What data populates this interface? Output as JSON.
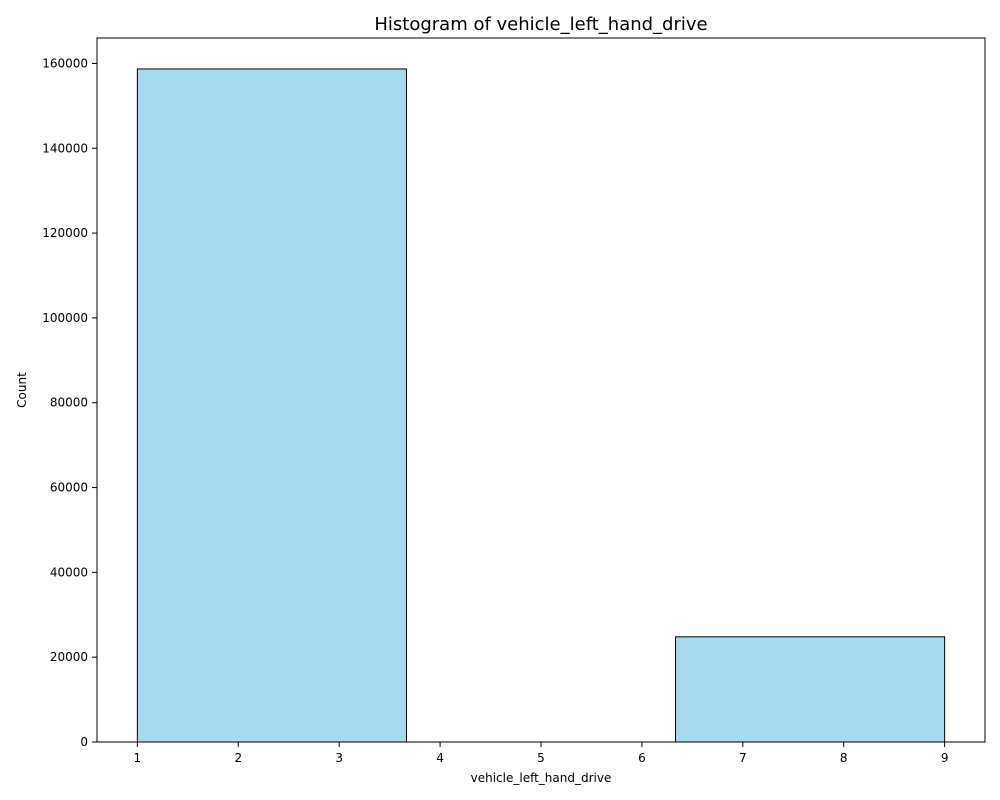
{
  "chart_data": {
    "type": "bar",
    "title": "Histogram of vehicle_left_hand_drive",
    "xlabel": "vehicle_left_hand_drive",
    "ylabel": "Count",
    "bins": [
      {
        "x0": 1,
        "x1": 3.6667,
        "count": 158700
      },
      {
        "x0": 3.6667,
        "x1": 6.3333,
        "count": 0
      },
      {
        "x0": 6.3333,
        "x1": 9,
        "count": 24800
      }
    ],
    "xlim": [
      0.6,
      9.4
    ],
    "ylim": [
      0,
      166000
    ],
    "xticks": [
      1,
      2,
      3,
      4,
      5,
      6,
      7,
      8,
      9
    ],
    "yticks": [
      0,
      20000,
      40000,
      60000,
      80000,
      100000,
      120000,
      140000,
      160000
    ],
    "bar_color": "#a6daf0",
    "edge_color": "#000000",
    "grid": false,
    "legend": false
  }
}
